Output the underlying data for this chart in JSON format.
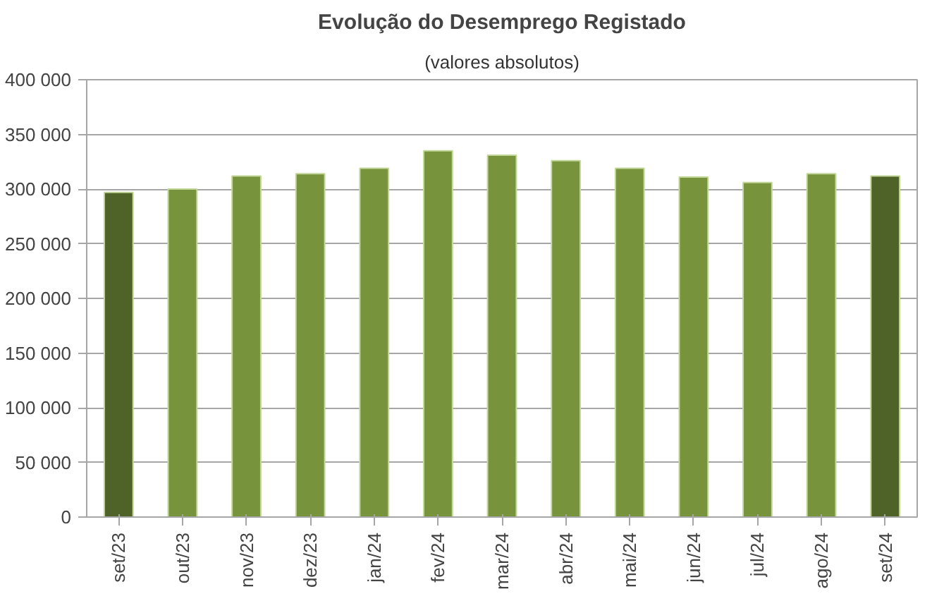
{
  "chart_data": {
    "type": "bar",
    "title": "Evolução do Desemprego Registado",
    "subtitle": "(valores absolutos)",
    "categories": [
      "set/23",
      "out/23",
      "nov/23",
      "dez/23",
      "jan/24",
      "fev/24",
      "mar/24",
      "abr/24",
      "mai/24",
      "jun/24",
      "jul/24",
      "ago/24",
      "set/24"
    ],
    "values": [
      297000,
      300000,
      312000,
      314000,
      319000,
      335000,
      331000,
      326000,
      319000,
      311000,
      306000,
      314000,
      312000
    ],
    "colors": [
      "#4f6228",
      "#77933c",
      "#77933c",
      "#77933c",
      "#77933c",
      "#77933c",
      "#77933c",
      "#77933c",
      "#77933c",
      "#77933c",
      "#77933c",
      "#77933c",
      "#4f6228"
    ],
    "ylim": [
      0,
      400000
    ],
    "yticks": [
      {
        "value": 0,
        "label": "0"
      },
      {
        "value": 50000,
        "label": "50 000"
      },
      {
        "value": 100000,
        "label": "100 000"
      },
      {
        "value": 150000,
        "label": "150 000"
      },
      {
        "value": 200000,
        "label": "200 000"
      },
      {
        "value": 250000,
        "label": "250 000"
      },
      {
        "value": 300000,
        "label": "300 000"
      },
      {
        "value": 350000,
        "label": "350 000"
      },
      {
        "value": 400000,
        "label": "400 000"
      }
    ],
    "grid": "y"
  }
}
